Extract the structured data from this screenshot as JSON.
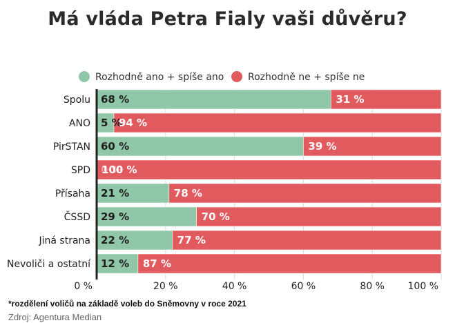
{
  "title": "Má vláda Petra Fialy vaši důvěru?",
  "footnote": "*rozdělení voličů na základě voleb do Sněmovny v roce 2021",
  "source": "Zdroj: Agentura Median",
  "colors": {
    "yes": "#8fc7a8",
    "no": "#e05a5e",
    "axis": "#222222",
    "grid": "#d9d9d9"
  },
  "chart_data": {
    "type": "bar",
    "orientation": "horizontal",
    "stacked": true,
    "categories": [
      "Spolu",
      "ANO",
      "PirSTAN",
      "SPD",
      "Přísaha",
      "ČSSD",
      "Jiná strana",
      "Nevoliči a ostatní"
    ],
    "series": [
      {
        "name": "Rozhodně ano + spíše ano",
        "values": [
          68,
          5,
          60,
          0,
          21,
          29,
          22,
          12
        ],
        "labels": [
          "68 %",
          "5 %",
          "60 %",
          "0 %",
          "21 %",
          "29 %",
          "22 %",
          "12 %"
        ]
      },
      {
        "name": "Rozhodně ne + spíše ne",
        "values": [
          31,
          94,
          39,
          100,
          78,
          70,
          77,
          87
        ],
        "labels": [
          "31 %",
          "94 %",
          "39 %",
          "100 %",
          "78 %",
          "70 %",
          "77 %",
          "87 %"
        ]
      }
    ],
    "xlim": [
      0,
      100
    ],
    "xticks": [
      "0 %",
      "20 %",
      "40 %",
      "60 %",
      "80 %",
      "100 %"
    ],
    "grid": true,
    "legend_position": "top"
  }
}
